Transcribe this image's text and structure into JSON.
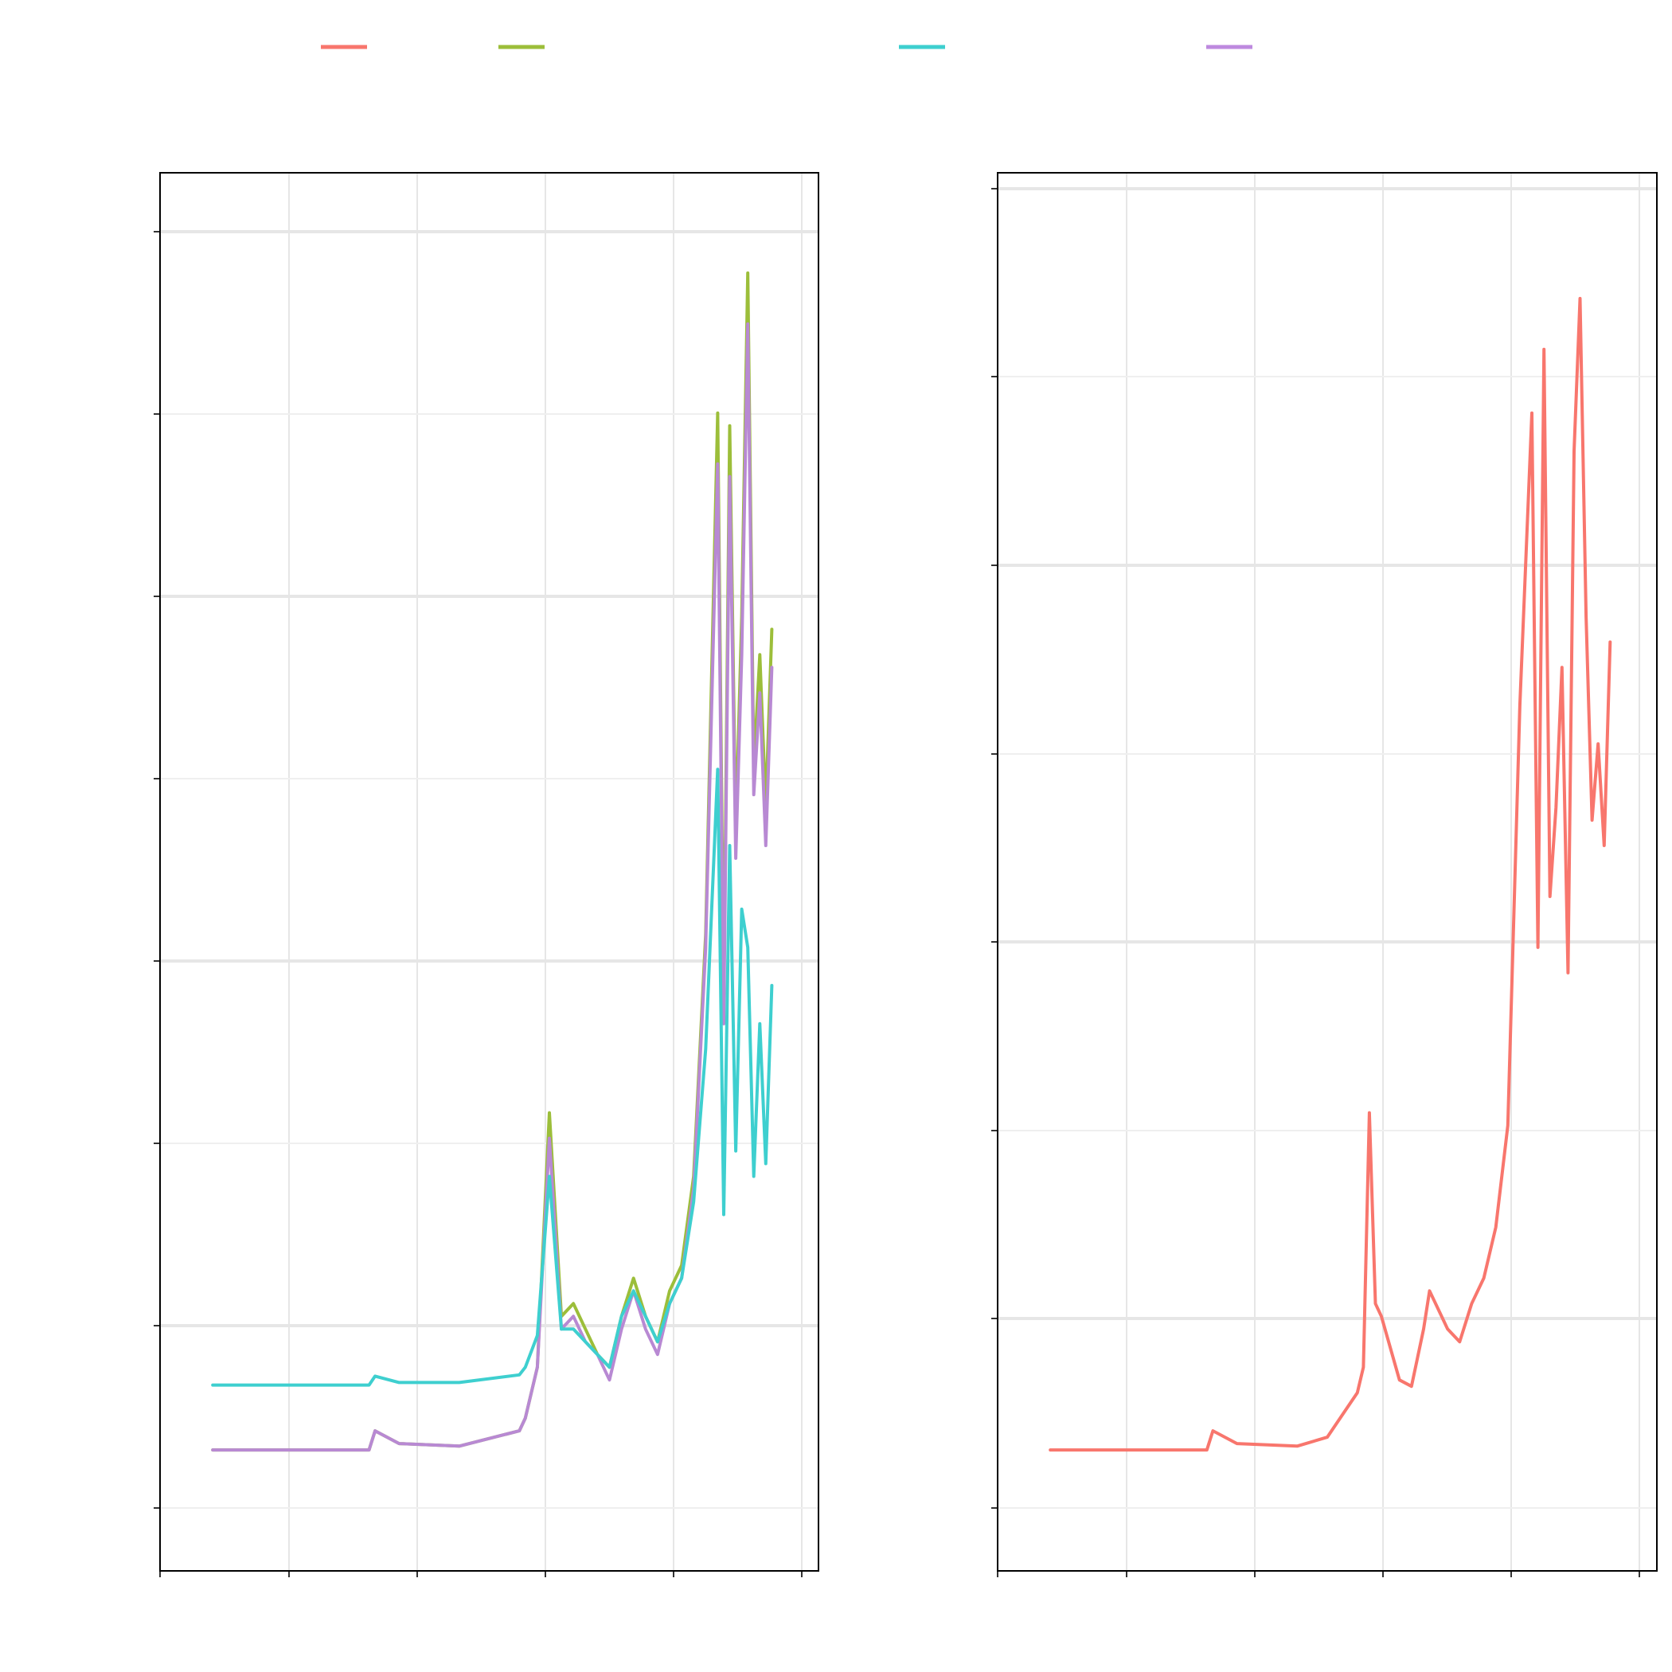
{
  "colors": {
    "series_red": "#F8766D",
    "series_green": "#9CBE3A",
    "series_teal": "#3ECFCF",
    "series_purple": "#BE8ADF",
    "series_purple_line": "#B889D3",
    "grid_major": "#E6E6E6",
    "grid_minor": "#EFEFEF",
    "frame": "#000000"
  },
  "legend": {
    "position": "top",
    "entries": [
      {
        "color_key": "series_red"
      },
      {
        "color_key": "series_green"
      },
      {
        "color_key": "series_teal"
      },
      {
        "color_key": "series_purple"
      }
    ]
  },
  "chart_data": [
    {
      "type": "line",
      "panel": "left",
      "xlim": [
        0,
        1
      ],
      "ylim": [
        0,
        1
      ],
      "grid": true,
      "series": [
        {
          "color_key": "series_green",
          "x": [
            0.04,
            0.3,
            0.31,
            0.35,
            0.45,
            0.55,
            0.56,
            0.58,
            0.6,
            0.62,
            0.64,
            0.66,
            0.68,
            0.7,
            0.72,
            0.74,
            0.76,
            0.78,
            0.8,
            0.82,
            0.84,
            0.86,
            0.88,
            0.89,
            0.9,
            0.91,
            0.92,
            0.93,
            0.94,
            0.95,
            0.96,
            0.97
          ],
          "y": [
            0.045,
            0.045,
            0.06,
            0.05,
            0.048,
            0.06,
            0.07,
            0.11,
            0.31,
            0.15,
            0.16,
            0.14,
            0.12,
            0.11,
            0.15,
            0.18,
            0.15,
            0.13,
            0.17,
            0.19,
            0.26,
            0.45,
            0.86,
            0.4,
            0.85,
            0.53,
            0.7,
            0.97,
            0.58,
            0.67,
            0.55,
            0.69
          ]
        },
        {
          "color_key": "series_purple_line",
          "x": [
            0.04,
            0.3,
            0.31,
            0.35,
            0.45,
            0.55,
            0.56,
            0.58,
            0.6,
            0.62,
            0.64,
            0.66,
            0.68,
            0.7,
            0.72,
            0.74,
            0.76,
            0.78,
            0.8,
            0.82,
            0.84,
            0.86,
            0.88,
            0.89,
            0.9,
            0.91,
            0.92,
            0.93,
            0.94,
            0.95,
            0.96,
            0.97
          ],
          "y": [
            0.045,
            0.045,
            0.06,
            0.05,
            0.048,
            0.06,
            0.07,
            0.11,
            0.29,
            0.14,
            0.15,
            0.13,
            0.12,
            0.1,
            0.14,
            0.17,
            0.14,
            0.12,
            0.16,
            0.18,
            0.25,
            0.44,
            0.82,
            0.38,
            0.81,
            0.51,
            0.67,
            0.93,
            0.56,
            0.64,
            0.52,
            0.66
          ]
        },
        {
          "color_key": "series_teal",
          "x": [
            0.04,
            0.3,
            0.31,
            0.35,
            0.45,
            0.55,
            0.56,
            0.58,
            0.6,
            0.62,
            0.64,
            0.66,
            0.68,
            0.7,
            0.72,
            0.74,
            0.76,
            0.78,
            0.8,
            0.82,
            0.84,
            0.86,
            0.88,
            0.89,
            0.9,
            0.91,
            0.92,
            0.93,
            0.94,
            0.95,
            0.96,
            0.97
          ],
          "y": [
            0.096,
            0.096,
            0.103,
            0.098,
            0.098,
            0.104,
            0.11,
            0.135,
            0.26,
            0.14,
            0.14,
            0.13,
            0.12,
            0.11,
            0.15,
            0.17,
            0.15,
            0.13,
            0.16,
            0.18,
            0.24,
            0.36,
            0.58,
            0.23,
            0.52,
            0.28,
            0.47,
            0.44,
            0.26,
            0.38,
            0.27,
            0.41
          ]
        }
      ]
    },
    {
      "type": "line",
      "panel": "right",
      "xlim": [
        0,
        1
      ],
      "ylim": [
        0,
        1
      ],
      "grid": true,
      "series": [
        {
          "color_key": "series_red",
          "x": [
            0.04,
            0.3,
            0.31,
            0.35,
            0.45,
            0.5,
            0.55,
            0.56,
            0.57,
            0.58,
            0.59,
            0.62,
            0.64,
            0.66,
            0.67,
            0.7,
            0.72,
            0.74,
            0.76,
            0.78,
            0.8,
            0.82,
            0.84,
            0.85,
            0.86,
            0.87,
            0.88,
            0.89,
            0.9,
            0.91,
            0.92,
            0.93,
            0.94,
            0.95,
            0.96,
            0.97
          ],
          "y": [
            0.045,
            0.045,
            0.06,
            0.05,
            0.048,
            0.055,
            0.09,
            0.11,
            0.31,
            0.16,
            0.15,
            0.1,
            0.095,
            0.14,
            0.17,
            0.14,
            0.13,
            0.16,
            0.18,
            0.22,
            0.3,
            0.63,
            0.86,
            0.44,
            0.91,
            0.48,
            0.55,
            0.66,
            0.42,
            0.83,
            0.95,
            0.7,
            0.54,
            0.6,
            0.52,
            0.68
          ]
        }
      ]
    }
  ]
}
